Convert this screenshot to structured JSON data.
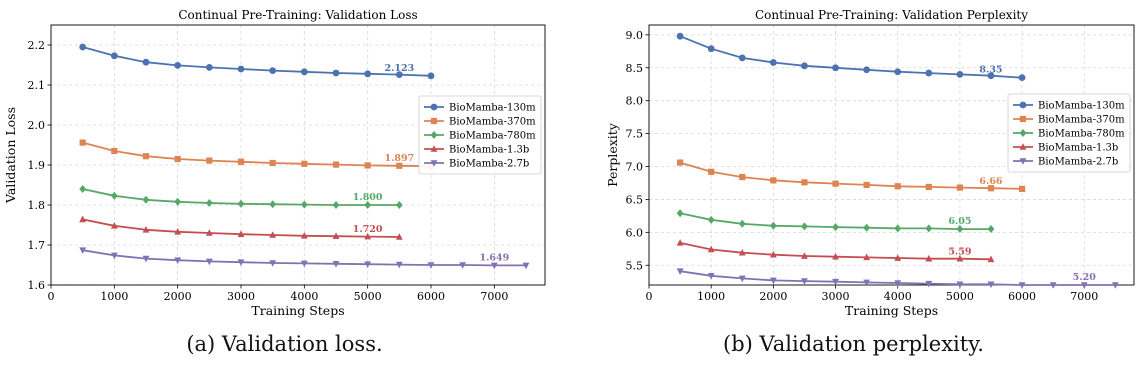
{
  "captions": {
    "a": "(a) Validation loss.",
    "b": "(b) Validation perplexity."
  },
  "chart_data": [
    {
      "type": "line",
      "title": "Continual Pre-Training: Validation Loss",
      "xlabel": "Training Steps",
      "ylabel": "Validation Loss",
      "xlim": [
        0,
        7800
      ],
      "ylim": [
        1.6,
        2.25
      ],
      "xticks": [
        0,
        1000,
        2000,
        3000,
        4000,
        5000,
        6000,
        7000
      ],
      "yticks": [
        1.6,
        1.7,
        1.8,
        1.9,
        2.0,
        2.1,
        2.2
      ],
      "tick_decimals": 1,
      "grid": true,
      "legend_position": "right",
      "series": [
        {
          "name": "BioMamba-130m",
          "color": "#4c72b0",
          "marker": "circle",
          "x": [
            500,
            1000,
            1500,
            2000,
            2500,
            3000,
            3500,
            4000,
            4500,
            5000,
            5500,
            6000
          ],
          "y": [
            2.195,
            2.173,
            2.157,
            2.149,
            2.144,
            2.14,
            2.136,
            2.133,
            2.13,
            2.128,
            2.126,
            2.123
          ],
          "end_label": "2.123",
          "end_label_x": 5500
        },
        {
          "name": "BioMamba-370m",
          "color": "#dd8452",
          "marker": "square",
          "x": [
            500,
            1000,
            1500,
            2000,
            2500,
            3000,
            3500,
            4000,
            4500,
            5000,
            5500,
            6000
          ],
          "y": [
            1.956,
            1.935,
            1.922,
            1.915,
            1.911,
            1.908,
            1.905,
            1.903,
            1.901,
            1.899,
            1.898,
            1.897
          ],
          "end_label": "1.897",
          "end_label_x": 5500
        },
        {
          "name": "BioMamba-780m",
          "color": "#55a868",
          "marker": "diamond",
          "x": [
            500,
            1000,
            1500,
            2000,
            2500,
            3000,
            3500,
            4000,
            4500,
            5000,
            5500
          ],
          "y": [
            1.84,
            1.823,
            1.813,
            1.808,
            1.805,
            1.803,
            1.802,
            1.801,
            1.8,
            1.8,
            1.8
          ],
          "end_label": "1.800",
          "end_label_x": 5000
        },
        {
          "name": "BioMamba-1.3b",
          "color": "#c44e52",
          "marker": "triangle-up",
          "x": [
            500,
            1000,
            1500,
            2000,
            2500,
            3000,
            3500,
            4000,
            4500,
            5000,
            5500
          ],
          "y": [
            1.764,
            1.748,
            1.738,
            1.733,
            1.73,
            1.727,
            1.725,
            1.723,
            1.722,
            1.721,
            1.72
          ],
          "end_label": "1.720",
          "end_label_x": 5000
        },
        {
          "name": "BioMamba-2.7b",
          "color": "#8172b3",
          "marker": "triangle-down",
          "x": [
            500,
            1000,
            1500,
            2000,
            2500,
            3000,
            3500,
            4000,
            4500,
            5000,
            5500,
            6000,
            6500,
            7000,
            7500
          ],
          "y": [
            1.687,
            1.674,
            1.666,
            1.662,
            1.659,
            1.657,
            1.655,
            1.654,
            1.653,
            1.652,
            1.651,
            1.65,
            1.65,
            1.649,
            1.649
          ],
          "end_label": "1.649",
          "end_label_x": 7000
        }
      ]
    },
    {
      "type": "line",
      "title": "Continual Pre-Training: Validation Perplexity",
      "xlabel": "Training Steps",
      "ylabel": "Perplexity",
      "xlim": [
        0,
        7800
      ],
      "ylim": [
        5.2,
        9.15
      ],
      "xticks": [
        0,
        1000,
        2000,
        3000,
        4000,
        5000,
        6000,
        7000
      ],
      "yticks": [
        5.5,
        6.0,
        6.5,
        7.0,
        7.5,
        8.0,
        8.5,
        9.0
      ],
      "tick_decimals": 1,
      "grid": true,
      "legend_position": "right",
      "series": [
        {
          "name": "BioMamba-130m",
          "color": "#4c72b0",
          "marker": "circle",
          "x": [
            500,
            1000,
            1500,
            2000,
            2500,
            3000,
            3500,
            4000,
            4500,
            5000,
            5500,
            6000
          ],
          "y": [
            8.98,
            8.79,
            8.65,
            8.58,
            8.53,
            8.5,
            8.47,
            8.44,
            8.42,
            8.4,
            8.38,
            8.35
          ],
          "end_label": "8.35",
          "end_label_x": 5500
        },
        {
          "name": "BioMamba-370m",
          "color": "#dd8452",
          "marker": "square",
          "x": [
            500,
            1000,
            1500,
            2000,
            2500,
            3000,
            3500,
            4000,
            4500,
            5000,
            5500,
            6000
          ],
          "y": [
            7.06,
            6.92,
            6.84,
            6.79,
            6.76,
            6.74,
            6.72,
            6.7,
            6.69,
            6.68,
            6.67,
            6.66
          ],
          "end_label": "6.66",
          "end_label_x": 5500
        },
        {
          "name": "BioMamba-780m",
          "color": "#55a868",
          "marker": "diamond",
          "x": [
            500,
            1000,
            1500,
            2000,
            2500,
            3000,
            3500,
            4000,
            4500,
            5000,
            5500
          ],
          "y": [
            6.29,
            6.19,
            6.13,
            6.1,
            6.09,
            6.08,
            6.07,
            6.06,
            6.06,
            6.05,
            6.05
          ],
          "end_label": "6.05",
          "end_label_x": 5000
        },
        {
          "name": "BioMamba-1.3b",
          "color": "#c44e52",
          "marker": "triangle-up",
          "x": [
            500,
            1000,
            1500,
            2000,
            2500,
            3000,
            3500,
            4000,
            4500,
            5000,
            5500
          ],
          "y": [
            5.84,
            5.74,
            5.69,
            5.66,
            5.64,
            5.63,
            5.62,
            5.61,
            5.6,
            5.6,
            5.59
          ],
          "end_label": "5.59",
          "end_label_x": 5000
        },
        {
          "name": "BioMamba-2.7b",
          "color": "#8172b3",
          "marker": "triangle-down",
          "x": [
            500,
            1000,
            1500,
            2000,
            2500,
            3000,
            3500,
            4000,
            4500,
            5000,
            5500,
            6000,
            6500,
            7000,
            7500
          ],
          "y": [
            5.41,
            5.34,
            5.3,
            5.27,
            5.26,
            5.25,
            5.24,
            5.23,
            5.22,
            5.21,
            5.21,
            5.2,
            5.2,
            5.2,
            5.2
          ],
          "end_label": "5.20",
          "end_label_x": 7000
        }
      ]
    }
  ]
}
